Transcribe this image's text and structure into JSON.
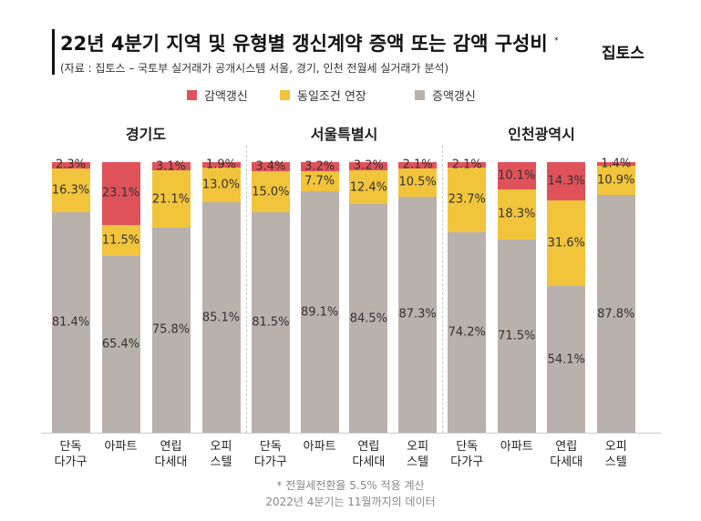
{
  "title": "22년 4분기 지역 및 유형별 갱신계약 증액 또는 감액 구성비",
  "title_mark": "*",
  "subtitle": "(자료 : 집토스 – 국토부 실거래가 공개시스템 서울, 경기, 인천 전월세 실거래가 분석)",
  "brand": "집토스",
  "footnotes": [
    "* 전월세전환율 5.5% 적용 계산",
    "2022년 4분기는 11월까지의 데이터"
  ],
  "chart_data": [
    {
      "type": "bar",
      "title": "경기도",
      "categories": [
        "단독\n다가구",
        "아파트",
        "연립\n다세대",
        "오피\n스텔"
      ],
      "ylim": [
        0,
        100
      ],
      "series": [
        {
          "name": "감액갱신",
          "color": "#e0525a",
          "values": [
            2.3,
            23.1,
            3.1,
            1.9
          ],
          "value_labels": [
            "2.3%",
            "23.1%",
            "3.1%",
            "1.9%"
          ]
        },
        {
          "name": "동일조건 연장",
          "color": "#f2c43c",
          "values": [
            16.3,
            11.5,
            21.1,
            13.0
          ],
          "value_labels": [
            "16.3%",
            "11.5%",
            "21.1%",
            "13.0%"
          ]
        },
        {
          "name": "증액갱신",
          "color": "#b9b1ac",
          "values": [
            81.4,
            65.4,
            75.8,
            85.1
          ],
          "value_labels": [
            "81.4%",
            "65.4%",
            "75.8%",
            "85.1%"
          ]
        }
      ]
    },
    {
      "type": "bar",
      "title": "서울특별시",
      "categories": [
        "단독\n다가구",
        "아파트",
        "연립\n다세대",
        "오피\n스텔"
      ],
      "ylim": [
        0,
        100
      ],
      "series": [
        {
          "name": "감액갱신",
          "color": "#e0525a",
          "values": [
            3.4,
            3.2,
            3.2,
            2.1
          ],
          "value_labels": [
            "3.4%",
            "3.2%",
            "3.2%",
            "2.1%"
          ]
        },
        {
          "name": "동일조건 연장",
          "color": "#f2c43c",
          "values": [
            15.0,
            7.7,
            12.4,
            10.5
          ],
          "value_labels": [
            "15.0%",
            "7.7%",
            "12.4%",
            "10.5%"
          ]
        },
        {
          "name": "증액갱신",
          "color": "#b9b1ac",
          "values": [
            81.5,
            89.1,
            84.5,
            87.3
          ],
          "value_labels": [
            "81.5%",
            "89.1%",
            "84.5%",
            "87.3%"
          ]
        }
      ]
    },
    {
      "type": "bar",
      "title": "인천광역시",
      "categories": [
        "단독\n다가구",
        "아파트",
        "연립\n다세대",
        "오피\n스텔"
      ],
      "ylim": [
        0,
        100
      ],
      "series": [
        {
          "name": "감액갱신",
          "color": "#e0525a",
          "values": [
            2.1,
            10.1,
            14.3,
            1.4
          ],
          "value_labels": [
            "2.1%",
            "10.1%",
            "14.3%",
            "1.4%"
          ]
        },
        {
          "name": "동일조건 연장",
          "color": "#f2c43c",
          "values": [
            23.7,
            18.3,
            31.6,
            10.9
          ],
          "value_labels": [
            "23.7%",
            "18.3%",
            "31.6%",
            "10.9%"
          ]
        },
        {
          "name": "증액갱신",
          "color": "#b9b1ac",
          "values": [
            74.2,
            71.5,
            54.1,
            87.8
          ],
          "value_labels": [
            "74.2%",
            "71.5%",
            "54.1%",
            "87.8%"
          ]
        }
      ]
    }
  ]
}
